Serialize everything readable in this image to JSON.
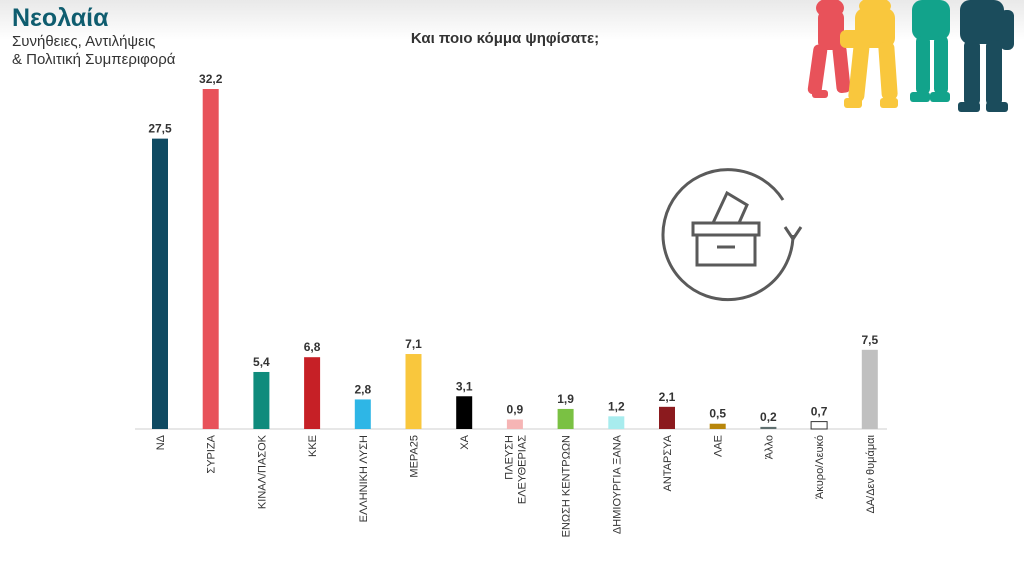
{
  "header": {
    "title": "Νεολαία",
    "subtitle_line1": "Συνήθειες, Αντιλήψεις",
    "subtitle_line2": "& Πολιτική Συμπεριφορά",
    "question": "Και ποιο κόμμα ψηφίσατε;"
  },
  "icons": {
    "illustration": "young-people-silhouettes-illustration",
    "ballot": "ballot-box-icon"
  },
  "chart_data": {
    "type": "bar",
    "title": "Και ποιο κόμμα ψηφίσατε;",
    "xlabel": "",
    "ylabel": "",
    "ylim": [
      0,
      32.2
    ],
    "grid": false,
    "legend": "none",
    "categories": [
      "ΝΔ",
      "ΣΥΡΙΖΑ",
      "ΚΙΝΑΛ/ΠΑΣΟΚ",
      "ΚΚΕ",
      "ΕΛΛΗΝΙΚΗ ΛΥΣΗ",
      "ΜΕΡΑ25",
      "ΧΑ",
      "ΠΛΕΥΣΗ ΕΛΕΥΘΕΡΙΑΣ",
      "ΕΝΩΣΗ ΚΕΝΤΡΩΩΝ",
      "ΔΗΜΙΟΥΡΓΙΑ ΞΑΝΑ",
      "ΑΝΤΑΡΣΥΑ",
      "ΛΑΕ",
      "Άλλο",
      "Άκυρο/Λευκό",
      "ΔΑ/Δεν θυμάμαι"
    ],
    "category_lines": [
      [
        "ΝΔ"
      ],
      [
        "ΣΥΡΙΖΑ"
      ],
      [
        "ΚΙΝΑΛ/ΠΑΣΟΚ"
      ],
      [
        "ΚΚΕ"
      ],
      [
        "ΕΛΛΗΝΙΚΗ ΛΥΣΗ"
      ],
      [
        "ΜΕΡΑ25"
      ],
      [
        "ΧΑ"
      ],
      [
        "ΠΛΕΥΣΗ",
        "ΕΛΕΥΘΕΡΙΑΣ"
      ],
      [
        "ΕΝΩΣΗ ΚΕΝΤΡΩΩΝ"
      ],
      [
        "ΔΗΜΙΟΥΡΓΙΑ ΞΑΝΑ"
      ],
      [
        "ΑΝΤΑΡΣΥΑ"
      ],
      [
        "ΛΑΕ"
      ],
      [
        "Άλλο"
      ],
      [
        "Άκυρο/Λευκό"
      ],
      [
        "ΔΑ/Δεν θυμάμαι"
      ]
    ],
    "values": [
      27.5,
      32.2,
      5.4,
      6.8,
      2.8,
      7.1,
      3.1,
      0.9,
      1.9,
      1.2,
      2.1,
      0.5,
      0.2,
      0.7,
      7.5
    ],
    "value_labels": [
      "27,5",
      "32,2",
      "5,4",
      "6,8",
      "2,8",
      "7,1",
      "3,1",
      "0,9",
      "1,9",
      "1,2",
      "2,1",
      "0,5",
      "0,2",
      "0,7",
      "7,5"
    ],
    "colors": [
      "#0f4a62",
      "#e8525a",
      "#0f8b7c",
      "#c62026",
      "#2eb6e6",
      "#f9c73d",
      "#000000",
      "#f6b5b5",
      "#7ac143",
      "#a8ecee",
      "#8b1a1e",
      "#b8860b",
      "#5f6f6f",
      "#ffffff",
      "#c0c0c0"
    ],
    "outlined": [
      false,
      false,
      false,
      false,
      false,
      false,
      false,
      false,
      false,
      false,
      false,
      false,
      false,
      true,
      false
    ]
  }
}
